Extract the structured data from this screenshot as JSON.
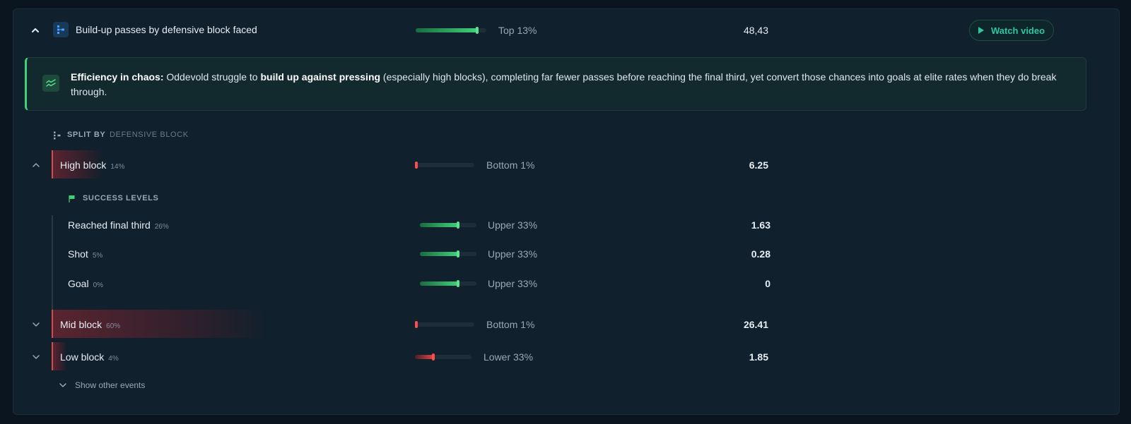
{
  "header": {
    "title": "Build-up passes by defensive block faced",
    "rank_label": "Top 13%",
    "rank_fraction": 0.87,
    "value": "48,43",
    "watch_label": "Watch video"
  },
  "insight": {
    "lead": "Efficiency in chaos:",
    "text_a": " Oddevold struggle to ",
    "emph": "build up against pressing",
    "text_b": " (especially high blocks), completing far fewer passes before reaching the final third, yet convert those chances into goals at elite rates when they do break through."
  },
  "split": {
    "label": "SPLIT BY",
    "value": "DEFENSIVE BLOCK"
  },
  "blocks": [
    {
      "name": "High block",
      "share": "14%",
      "share_fraction": 0.14,
      "rank_label": "Bottom 1%",
      "rank_fraction": 0.01,
      "value": "6.25"
    },
    {
      "name": "Mid block",
      "share": "60%",
      "share_fraction": 0.6,
      "rank_label": "Bottom 1%",
      "rank_fraction": 0.01,
      "value": "26.41"
    },
    {
      "name": "Low block",
      "share": "4%",
      "share_fraction": 0.04,
      "rank_label": "Lower 33%",
      "rank_fraction": 0.33,
      "value": "1.85"
    }
  ],
  "success": {
    "label": "SUCCESS LEVELS",
    "items": [
      {
        "name": "Reached final third",
        "share": "26%",
        "rank_label": "Upper 33%",
        "rank_fraction": 0.67,
        "value": "1.63"
      },
      {
        "name": "Shot",
        "share": "5%",
        "rank_label": "Upper 33%",
        "rank_fraction": 0.67,
        "value": "0.28"
      },
      {
        "name": "Goal",
        "share": "0%",
        "rank_label": "Upper 33%",
        "rank_fraction": 0.67,
        "value": "0"
      }
    ]
  },
  "show_other": "Show other events",
  "colors": {
    "green": "#3fd17a",
    "red": "#e04545",
    "accent_teal": "#2fc79e"
  },
  "icons": {
    "collapse": "chevron-up-icon",
    "expand": "chevron-down-icon",
    "metric": "split-tree-icon",
    "insight": "trend-chart-icon",
    "play": "play-icon",
    "flag": "flag-icon"
  }
}
